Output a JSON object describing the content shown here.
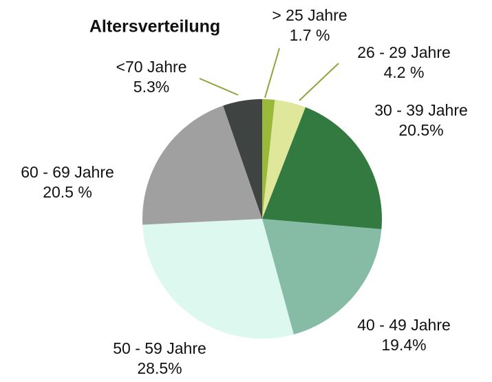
{
  "chart_data": {
    "type": "pie",
    "title": "Altersverteilung",
    "categories": [
      "> 25 Jahre",
      "26 - 29 Jahre",
      "30 - 39 Jahre",
      "40 - 49 Jahre",
      "50 - 59 Jahre",
      "60 - 69 Jahre",
      "<70 Jahre"
    ],
    "values": [
      1.7,
      4.2,
      20.5,
      19.4,
      28.5,
      20.5,
      5.3
    ],
    "value_labels": [
      "1.7 %",
      "4.2 %",
      "20.5%",
      "19.4%",
      "28.5%",
      "20.5 %",
      "5.3%"
    ],
    "colors": [
      "#9ab83a",
      "#dfe89a",
      "#337a40",
      "#86bca6",
      "#dcf8ef",
      "#a0a0a0",
      "#3f4443"
    ]
  }
}
